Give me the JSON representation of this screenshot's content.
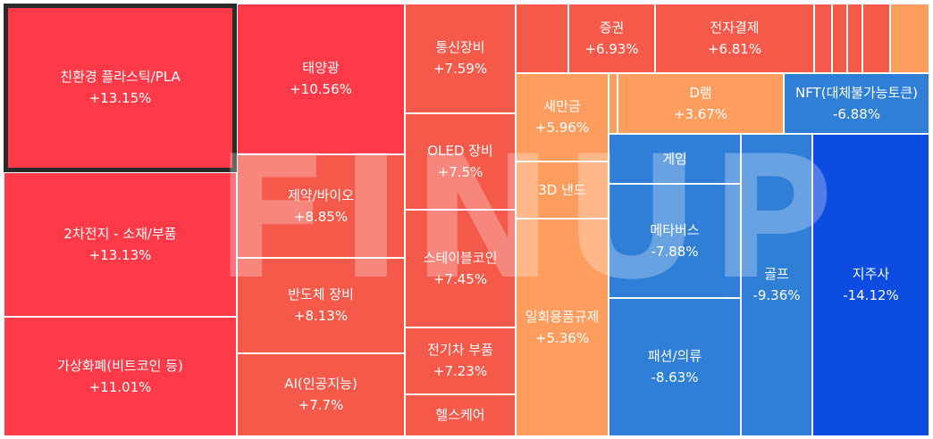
{
  "colors": {
    "up_strong": "#fe3a48",
    "up_medium": "#f4594a",
    "up_light": "#ff9d5e",
    "down_medium": "#2f7fd7",
    "down_strong": "#0d4ce0"
  },
  "watermark": "FINUP",
  "chart_data": {
    "type": "treemap",
    "title": "",
    "items": [
      {
        "name": "친환경 플라스틱/PLA",
        "change": "+13.15%",
        "value": 13.15,
        "selected": true
      },
      {
        "name": "2차전지 - 소재/부품",
        "change": "+13.13%",
        "value": 13.13
      },
      {
        "name": "가상화폐(비트코인 등)",
        "change": "+11.01%",
        "value": 11.01
      },
      {
        "name": "태양광",
        "change": "+10.56%",
        "value": 10.56
      },
      {
        "name": "제약/바이오",
        "change": "+8.85%",
        "value": 8.85
      },
      {
        "name": "반도체 장비",
        "change": "+8.13%",
        "value": 8.13
      },
      {
        "name": "AI(인공지능)",
        "change": "+7.7%",
        "value": 7.7
      },
      {
        "name": "통신장비",
        "change": "+7.59%",
        "value": 7.59
      },
      {
        "name": "OLED 장비",
        "change": "+7.5%",
        "value": 7.5
      },
      {
        "name": "스테이블코인",
        "change": "+7.45%",
        "value": 7.45
      },
      {
        "name": "전기차 부품",
        "change": "+7.23%",
        "value": 7.23
      },
      {
        "name": "헬스케어",
        "change": "",
        "value": null
      },
      {
        "name": "증권",
        "change": "+6.93%",
        "value": 6.93
      },
      {
        "name": "전자결제",
        "change": "+6.81%",
        "value": 6.81
      },
      {
        "name": "새만금",
        "change": "+5.96%",
        "value": 5.96
      },
      {
        "name": "3D 낸드",
        "change": "",
        "value": null
      },
      {
        "name": "일회용품규제",
        "change": "+5.36%",
        "value": 5.36
      },
      {
        "name": "D램",
        "change": "+3.67%",
        "value": 3.67
      },
      {
        "name": "NFT(대체불가능토큰)",
        "change": "-6.88%",
        "value": -6.88
      },
      {
        "name": "게임",
        "change": "",
        "value": null
      },
      {
        "name": "메타버스",
        "change": "-7.88%",
        "value": -7.88
      },
      {
        "name": "패션/의류",
        "change": "-8.63%",
        "value": -8.63
      },
      {
        "name": "골프",
        "change": "-9.36%",
        "value": -9.36
      },
      {
        "name": "지주사",
        "change": "-14.12%",
        "value": -14.12
      },
      {
        "name": "",
        "change": "",
        "value": null
      },
      {
        "name": "",
        "change": "",
        "value": null
      },
      {
        "name": "",
        "change": "",
        "value": null
      },
      {
        "name": "",
        "change": "",
        "value": null
      },
      {
        "name": "",
        "change": "",
        "value": null
      },
      {
        "name": "",
        "change": "",
        "value": null
      },
      {
        "name": "",
        "change": "",
        "value": null
      }
    ]
  }
}
